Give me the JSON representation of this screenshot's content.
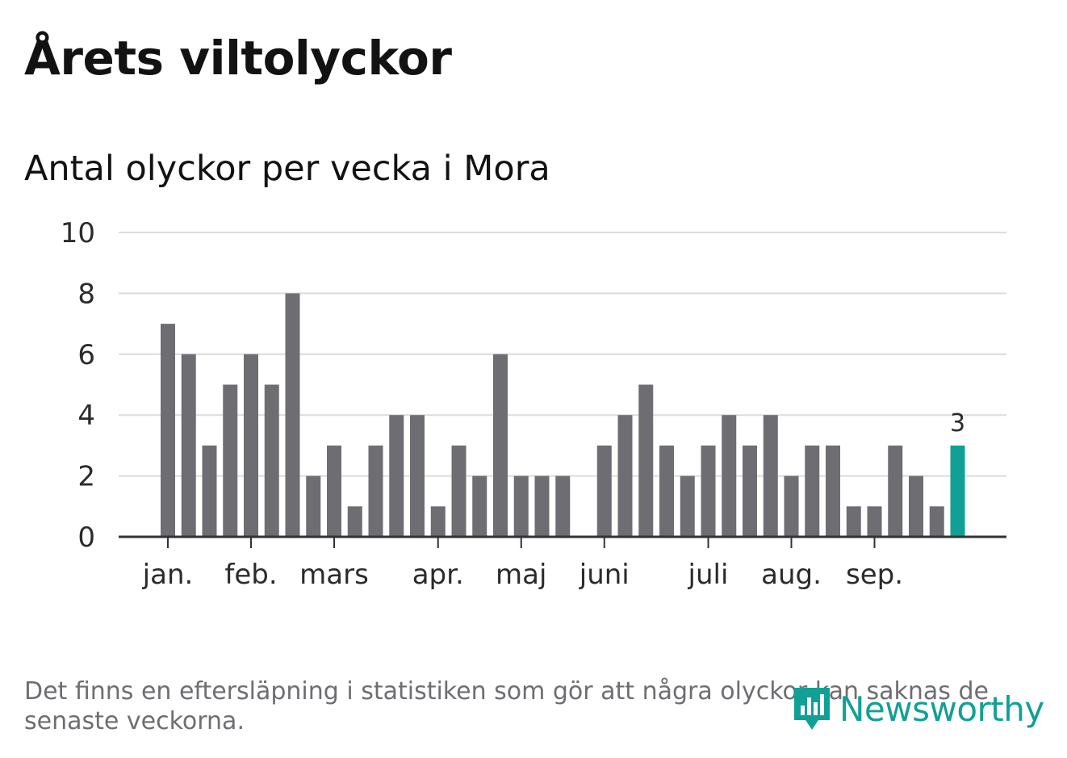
{
  "header": {
    "title": "Årets viltolyckor",
    "subtitle": "Antal olyckor per vecka i Mora"
  },
  "footer": {
    "note": "Det finns en eftersläpning i statistiken som gör att några olyckor kan saknas de senaste veckorna.",
    "brand": "Newsworthy"
  },
  "colors": {
    "bar": "#6e6d72",
    "highlight": "#11a096",
    "grid": "#dcdcdc",
    "axis": "#333333"
  },
  "chart_data": {
    "type": "bar",
    "title": "Årets viltolyckor",
    "subtitle": "Antal olyckor per vecka i Mora",
    "ylim": [
      0,
      10
    ],
    "yticks": [
      0,
      2,
      4,
      6,
      8,
      10
    ],
    "grid": true,
    "values": [
      7,
      6,
      3,
      5,
      6,
      5,
      8,
      2,
      3,
      1,
      3,
      4,
      4,
      1,
      3,
      2,
      6,
      2,
      2,
      2,
      0,
      3,
      4,
      5,
      3,
      2,
      3,
      4,
      3,
      4,
      2,
      3,
      3,
      1,
      1,
      3,
      2,
      1,
      3
    ],
    "highlight_index": 38,
    "highlight_label": "3",
    "month_labels": [
      {
        "label": "jan.",
        "week": 0
      },
      {
        "label": "feb.",
        "week": 4
      },
      {
        "label": "mars",
        "week": 8
      },
      {
        "label": "apr.",
        "week": 13
      },
      {
        "label": "maj",
        "week": 17
      },
      {
        "label": "juni",
        "week": 21
      },
      {
        "label": "juli",
        "week": 26
      },
      {
        "label": "aug.",
        "week": 30
      },
      {
        "label": "sep.",
        "week": 34
      }
    ]
  }
}
